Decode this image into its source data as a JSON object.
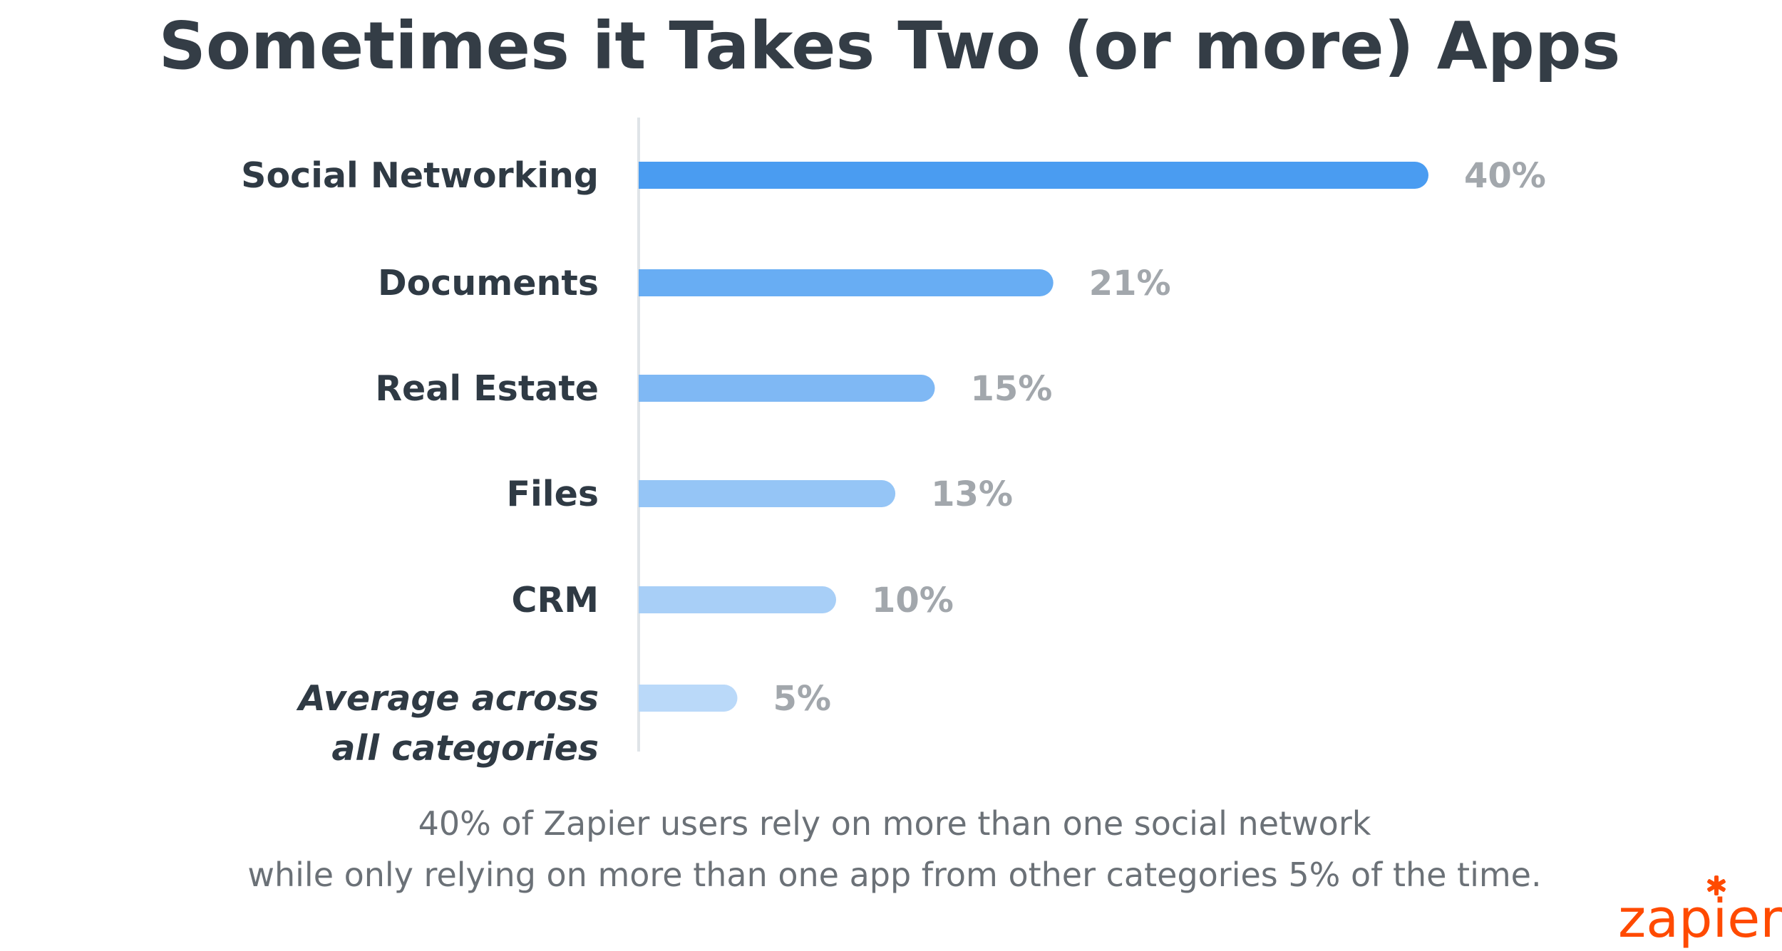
{
  "chart_data": {
    "type": "bar",
    "orientation": "horizontal",
    "title": "Sometimes it Takes Two (or more) Apps",
    "categories": [
      [
        "Social Networking"
      ],
      [
        "Documents"
      ],
      [
        "Real Estate"
      ],
      [
        "Files"
      ],
      [
        "CRM"
      ],
      [
        "Average across",
        "all categories"
      ]
    ],
    "values": [
      40,
      21,
      15,
      13,
      10,
      5
    ],
    "value_labels": [
      "40%",
      "21%",
      "15%",
      "13%",
      "10%",
      "5%"
    ],
    "bar_colors": [
      "#4a9cf1",
      "#68adf3",
      "#7fb8f4",
      "#95c5f6",
      "#a8cff7",
      "#bad9f9"
    ],
    "xlim": [
      0,
      40
    ],
    "grid": false,
    "legend": "none"
  },
  "caption": {
    "line1": "40% of Zapier users rely on more than one social network",
    "line2": "while only relying on more than one app from other categories 5% of the time."
  },
  "brand": {
    "name": "zapier",
    "color": "#ff4a00",
    "icon": "asterisk-icon"
  },
  "colors": {
    "title": "#343d46",
    "category_text": "#2f3a44",
    "value_text": "#a2a7ac",
    "axis": "#dfe4e8",
    "caption": "#6b7177"
  }
}
